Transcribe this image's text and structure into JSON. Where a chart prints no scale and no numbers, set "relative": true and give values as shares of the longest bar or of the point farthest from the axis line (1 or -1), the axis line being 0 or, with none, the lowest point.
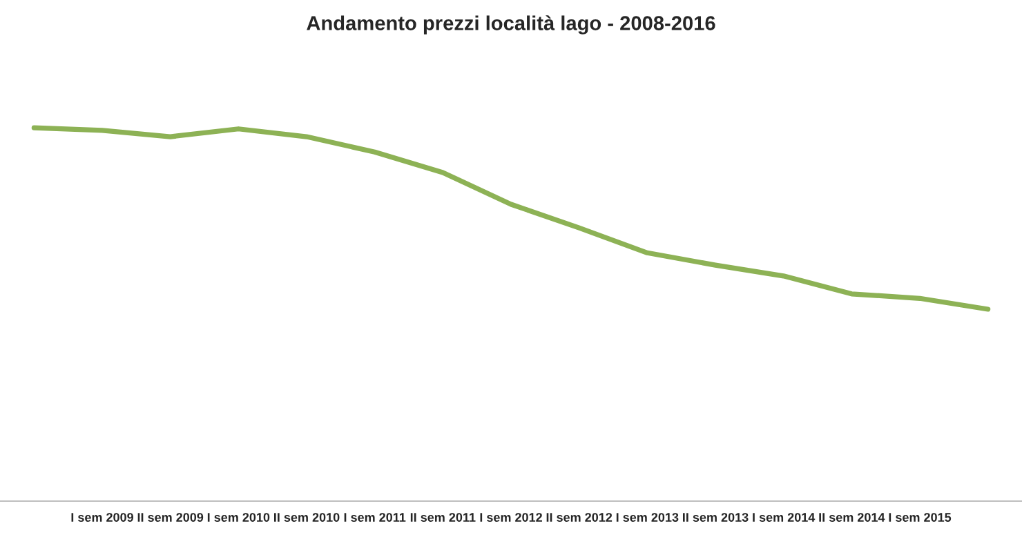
{
  "chart_data": {
    "type": "line",
    "title": "Andamento prezzi località lago - 2008-2016",
    "relative": true,
    "categories": [
      null,
      "I sem 2009",
      "II sem 2009",
      "I sem 2010",
      "II sem 2010",
      "I sem 2011",
      "II sem 2011",
      "I sem 2012",
      "II sem 2012",
      "I sem 2013",
      "II sem 2013",
      "I sem 2014",
      "II sem 2014",
      "I sem 2015",
      null
    ],
    "series": [
      {
        "color": "#8db255",
        "values": [
          1,
          0.993,
          0.976,
          0.997,
          0.976,
          0.935,
          0.88,
          0.795,
          0.732,
          0.665,
          0.632,
          0.603,
          0.555,
          0.543,
          0.514
        ]
      }
    ],
    "grid": false,
    "legend": false,
    "marker": "none",
    "line_style": "solid"
  }
}
